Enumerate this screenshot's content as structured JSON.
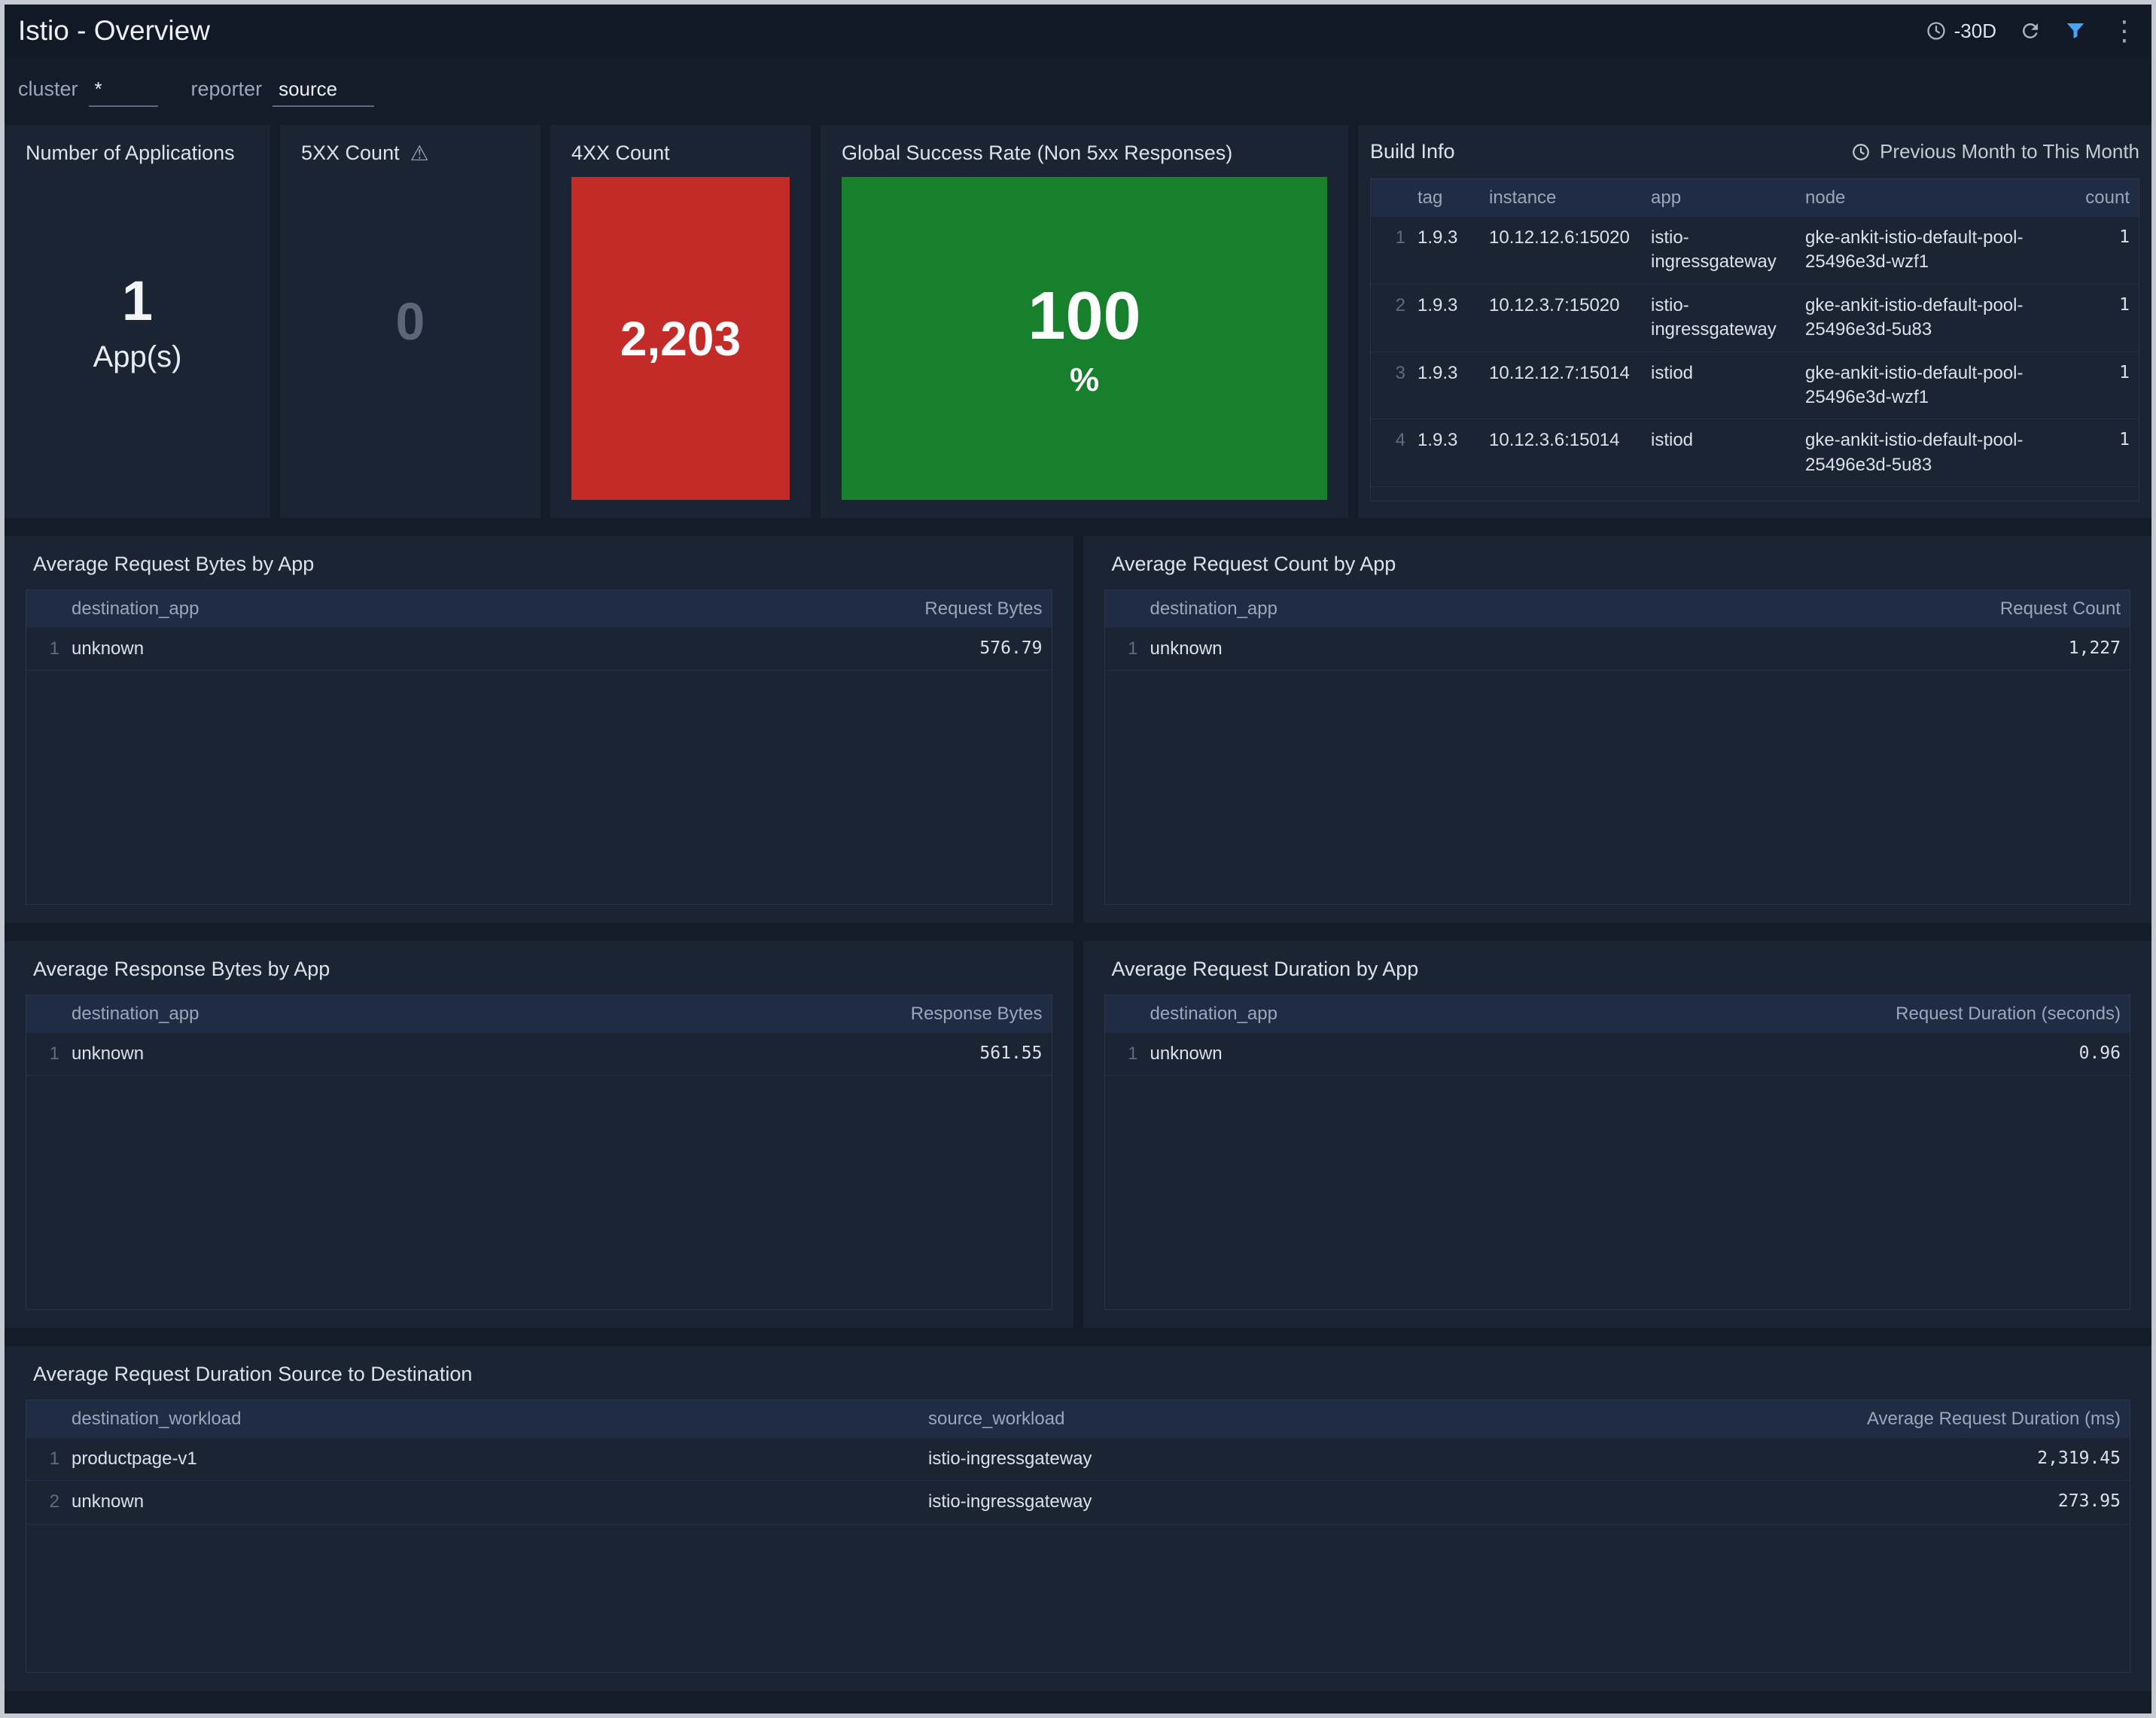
{
  "header": {
    "title": "Istio - Overview",
    "time_range": "-30D"
  },
  "filters": {
    "cluster_label": "cluster",
    "cluster_value": "*",
    "reporter_label": "reporter",
    "reporter_value": "source"
  },
  "panels": {
    "applications": {
      "title": "Number of Applications",
      "value": "1",
      "unit": "App(s)"
    },
    "five_xx": {
      "title": "5XX Count",
      "value": "0"
    },
    "four_xx": {
      "title": "4XX Count",
      "value": "2,203"
    },
    "success_rate": {
      "title": "Global Success Rate (Non 5xx Responses)",
      "value": "100",
      "unit": "%"
    },
    "build_info": {
      "title": "Build Info",
      "time_label": "Previous Month to This Month",
      "table": {
        "columns": [
          "tag",
          "instance",
          "app",
          "node",
          "count"
        ],
        "rows": [
          [
            "1.9.3",
            "10.12.12.6:15020",
            "istio-ingressgateway",
            "gke-ankit-istio-default-pool-25496e3d-wzf1",
            "1"
          ],
          [
            "1.9.3",
            "10.12.3.7:15020",
            "istio-ingressgateway",
            "gke-ankit-istio-default-pool-25496e3d-5u83",
            "1"
          ],
          [
            "1.9.3",
            "10.12.12.7:15014",
            "istiod",
            "gke-ankit-istio-default-pool-25496e3d-wzf1",
            "1"
          ],
          [
            "1.9.3",
            "10.12.3.6:15014",
            "istiod",
            "gke-ankit-istio-default-pool-25496e3d-5u83",
            "1"
          ]
        ]
      }
    },
    "avg_request_bytes": {
      "title": "Average Request Bytes by App",
      "table": {
        "columns": [
          "destination_app",
          "Request Bytes"
        ],
        "rows": [
          [
            "unknown",
            "576.79"
          ]
        ]
      }
    },
    "avg_request_count": {
      "title": "Average Request Count by App",
      "table": {
        "columns": [
          "destination_app",
          "Request Count"
        ],
        "rows": [
          [
            "unknown",
            "1,227"
          ]
        ]
      }
    },
    "avg_response_bytes": {
      "title": "Average Response Bytes by App",
      "table": {
        "columns": [
          "destination_app",
          "Response Bytes"
        ],
        "rows": [
          [
            "unknown",
            "561.55"
          ]
        ]
      }
    },
    "avg_request_duration": {
      "title": "Average Request Duration by App",
      "table": {
        "columns": [
          "destination_app",
          "Request Duration (seconds)"
        ],
        "rows": [
          [
            "unknown",
            "0.96"
          ]
        ]
      }
    },
    "src_to_dest_duration": {
      "title": "Average Request Duration Source to Destination",
      "table": {
        "columns": [
          "destination_workload",
          "source_workload",
          "Average Request Duration (ms)"
        ],
        "rows": [
          [
            "productpage-v1",
            "istio-ingressgateway",
            "2,319.45"
          ],
          [
            "unknown",
            "istio-ingressgateway",
            "273.95"
          ]
        ]
      }
    }
  },
  "colors": {
    "error_red": "#c22b27",
    "success_green": "#17802c",
    "accent_blue": "#45a5f5"
  }
}
